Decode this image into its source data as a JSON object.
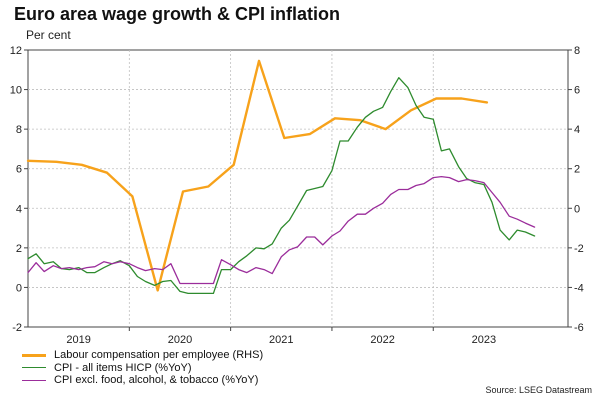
{
  "chart_data": {
    "type": "line",
    "title": "Euro area wage growth & CPI inflation",
    "subtitle": "Per cent",
    "source": "Source: LSEG Datastream",
    "x_range": [
      2018.67,
      2024.0
    ],
    "x_ticks": [
      {
        "label": "2019",
        "x": 2019.17
      },
      {
        "label": "2020",
        "x": 2020.17
      },
      {
        "label": "2021",
        "x": 2021.17
      },
      {
        "label": "2022",
        "x": 2022.17
      },
      {
        "label": "2023",
        "x": 2023.17
      }
    ],
    "x_year_boundaries": [
      2019.67,
      2020.67,
      2021.67,
      2022.67
    ],
    "y_left": {
      "min": -2,
      "max": 12,
      "ticks": [
        -2,
        0,
        2,
        4,
        6,
        8,
        10,
        12
      ]
    },
    "y_right": {
      "min": -6,
      "max": 8,
      "ticks": [
        -6,
        -4,
        -2,
        0,
        2,
        4,
        6,
        8
      ]
    },
    "series": [
      {
        "name": "Labour compensation per employee (RHS)",
        "color": "#f7a21b",
        "width": 2.4,
        "axis": "right",
        "points": [
          [
            2018.67,
            2.4
          ],
          [
            2018.95,
            2.35
          ],
          [
            2019.2,
            2.2
          ],
          [
            2019.45,
            1.8
          ],
          [
            2019.7,
            0.6
          ],
          [
            2019.95,
            -4.15
          ],
          [
            2020.2,
            0.85
          ],
          [
            2020.45,
            1.1
          ],
          [
            2020.7,
            2.2
          ],
          [
            2020.95,
            7.45
          ],
          [
            2021.2,
            3.55
          ],
          [
            2021.45,
            3.75
          ],
          [
            2021.7,
            4.55
          ],
          [
            2021.95,
            4.45
          ],
          [
            2022.2,
            4.0
          ],
          [
            2022.45,
            4.95
          ],
          [
            2022.7,
            5.55
          ],
          [
            2022.95,
            5.55
          ],
          [
            2023.2,
            5.35
          ]
        ]
      },
      {
        "name": "CPI - all items HICP  (%YoY)",
        "color": "#2e8b2e",
        "width": 1.3,
        "axis": "left",
        "points": [
          [
            2018.67,
            1.45
          ],
          [
            2018.75,
            1.7
          ],
          [
            2018.83,
            1.2
          ],
          [
            2018.92,
            1.3
          ],
          [
            2019.0,
            0.95
          ],
          [
            2019.08,
            0.9
          ],
          [
            2019.17,
            1.0
          ],
          [
            2019.25,
            0.75
          ],
          [
            2019.33,
            0.75
          ],
          [
            2019.42,
            1.0
          ],
          [
            2019.5,
            1.2
          ],
          [
            2019.58,
            1.35
          ],
          [
            2019.67,
            1.1
          ],
          [
            2019.75,
            0.55
          ],
          [
            2019.83,
            0.3
          ],
          [
            2019.92,
            0.1
          ],
          [
            2020.0,
            0.3
          ],
          [
            2020.08,
            0.35
          ],
          [
            2020.17,
            -0.2
          ],
          [
            2020.25,
            -0.3
          ],
          [
            2020.33,
            -0.3
          ],
          [
            2020.42,
            -0.3
          ],
          [
            2020.5,
            -0.3
          ],
          [
            2020.58,
            0.9
          ],
          [
            2020.67,
            0.9
          ],
          [
            2020.75,
            1.3
          ],
          [
            2020.83,
            1.6
          ],
          [
            2020.92,
            2.0
          ],
          [
            2021.0,
            1.95
          ],
          [
            2021.08,
            2.2
          ],
          [
            2021.17,
            3.0
          ],
          [
            2021.25,
            3.4
          ],
          [
            2021.33,
            4.1
          ],
          [
            2021.42,
            4.9
          ],
          [
            2021.5,
            5.0
          ],
          [
            2021.58,
            5.1
          ],
          [
            2021.67,
            5.9
          ],
          [
            2021.75,
            7.4
          ],
          [
            2021.83,
            7.4
          ],
          [
            2021.92,
            8.1
          ],
          [
            2022.0,
            8.6
          ],
          [
            2022.08,
            8.9
          ],
          [
            2022.17,
            9.1
          ],
          [
            2022.25,
            9.9
          ],
          [
            2022.33,
            10.6
          ],
          [
            2022.42,
            10.1
          ],
          [
            2022.5,
            9.2
          ],
          [
            2022.58,
            8.6
          ],
          [
            2022.67,
            8.5
          ],
          [
            2022.75,
            6.9
          ],
          [
            2022.83,
            7.0
          ],
          [
            2022.92,
            6.1
          ],
          [
            2023.0,
            5.5
          ],
          [
            2023.08,
            5.3
          ],
          [
            2023.17,
            5.2
          ],
          [
            2023.25,
            4.3
          ],
          [
            2023.33,
            2.9
          ],
          [
            2023.42,
            2.4
          ],
          [
            2023.5,
            2.9
          ],
          [
            2023.58,
            2.8
          ],
          [
            2023.67,
            2.6
          ]
        ]
      },
      {
        "name": "CPI excl. food, alcohol, & tobacco (%YoY)",
        "color": "#9b2d9b",
        "width": 1.3,
        "axis": "left",
        "points": [
          [
            2018.67,
            0.75
          ],
          [
            2018.75,
            1.25
          ],
          [
            2018.83,
            0.8
          ],
          [
            2018.92,
            1.1
          ],
          [
            2019.0,
            0.95
          ],
          [
            2019.08,
            1.0
          ],
          [
            2019.17,
            0.9
          ],
          [
            2019.25,
            1.0
          ],
          [
            2019.33,
            1.05
          ],
          [
            2019.42,
            1.3
          ],
          [
            2019.5,
            1.2
          ],
          [
            2019.58,
            1.3
          ],
          [
            2019.67,
            1.2
          ],
          [
            2019.75,
            1.0
          ],
          [
            2019.83,
            0.85
          ],
          [
            2019.92,
            0.95
          ],
          [
            2020.0,
            0.9
          ],
          [
            2020.08,
            1.2
          ],
          [
            2020.17,
            0.2
          ],
          [
            2020.25,
            0.2
          ],
          [
            2020.33,
            0.2
          ],
          [
            2020.42,
            0.2
          ],
          [
            2020.5,
            0.2
          ],
          [
            2020.58,
            1.4
          ],
          [
            2020.67,
            1.15
          ],
          [
            2020.75,
            0.9
          ],
          [
            2020.83,
            0.75
          ],
          [
            2020.92,
            1.0
          ],
          [
            2021.0,
            0.9
          ],
          [
            2021.08,
            0.7
          ],
          [
            2021.17,
            1.55
          ],
          [
            2021.25,
            1.9
          ],
          [
            2021.33,
            2.05
          ],
          [
            2021.42,
            2.55
          ],
          [
            2021.5,
            2.55
          ],
          [
            2021.58,
            2.15
          ],
          [
            2021.67,
            2.6
          ],
          [
            2021.75,
            2.85
          ],
          [
            2021.83,
            3.35
          ],
          [
            2021.92,
            3.7
          ],
          [
            2022.0,
            3.7
          ],
          [
            2022.08,
            4.0
          ],
          [
            2022.17,
            4.25
          ],
          [
            2022.25,
            4.7
          ],
          [
            2022.33,
            4.95
          ],
          [
            2022.42,
            4.95
          ],
          [
            2022.5,
            5.15
          ],
          [
            2022.58,
            5.25
          ],
          [
            2022.67,
            5.55
          ],
          [
            2022.75,
            5.6
          ],
          [
            2022.83,
            5.55
          ],
          [
            2022.92,
            5.35
          ],
          [
            2023.0,
            5.45
          ],
          [
            2023.08,
            5.4
          ],
          [
            2023.17,
            5.3
          ],
          [
            2023.25,
            4.8
          ],
          [
            2023.33,
            4.3
          ],
          [
            2023.42,
            3.6
          ],
          [
            2023.5,
            3.45
          ],
          [
            2023.58,
            3.25
          ],
          [
            2023.67,
            3.05
          ]
        ]
      }
    ]
  }
}
